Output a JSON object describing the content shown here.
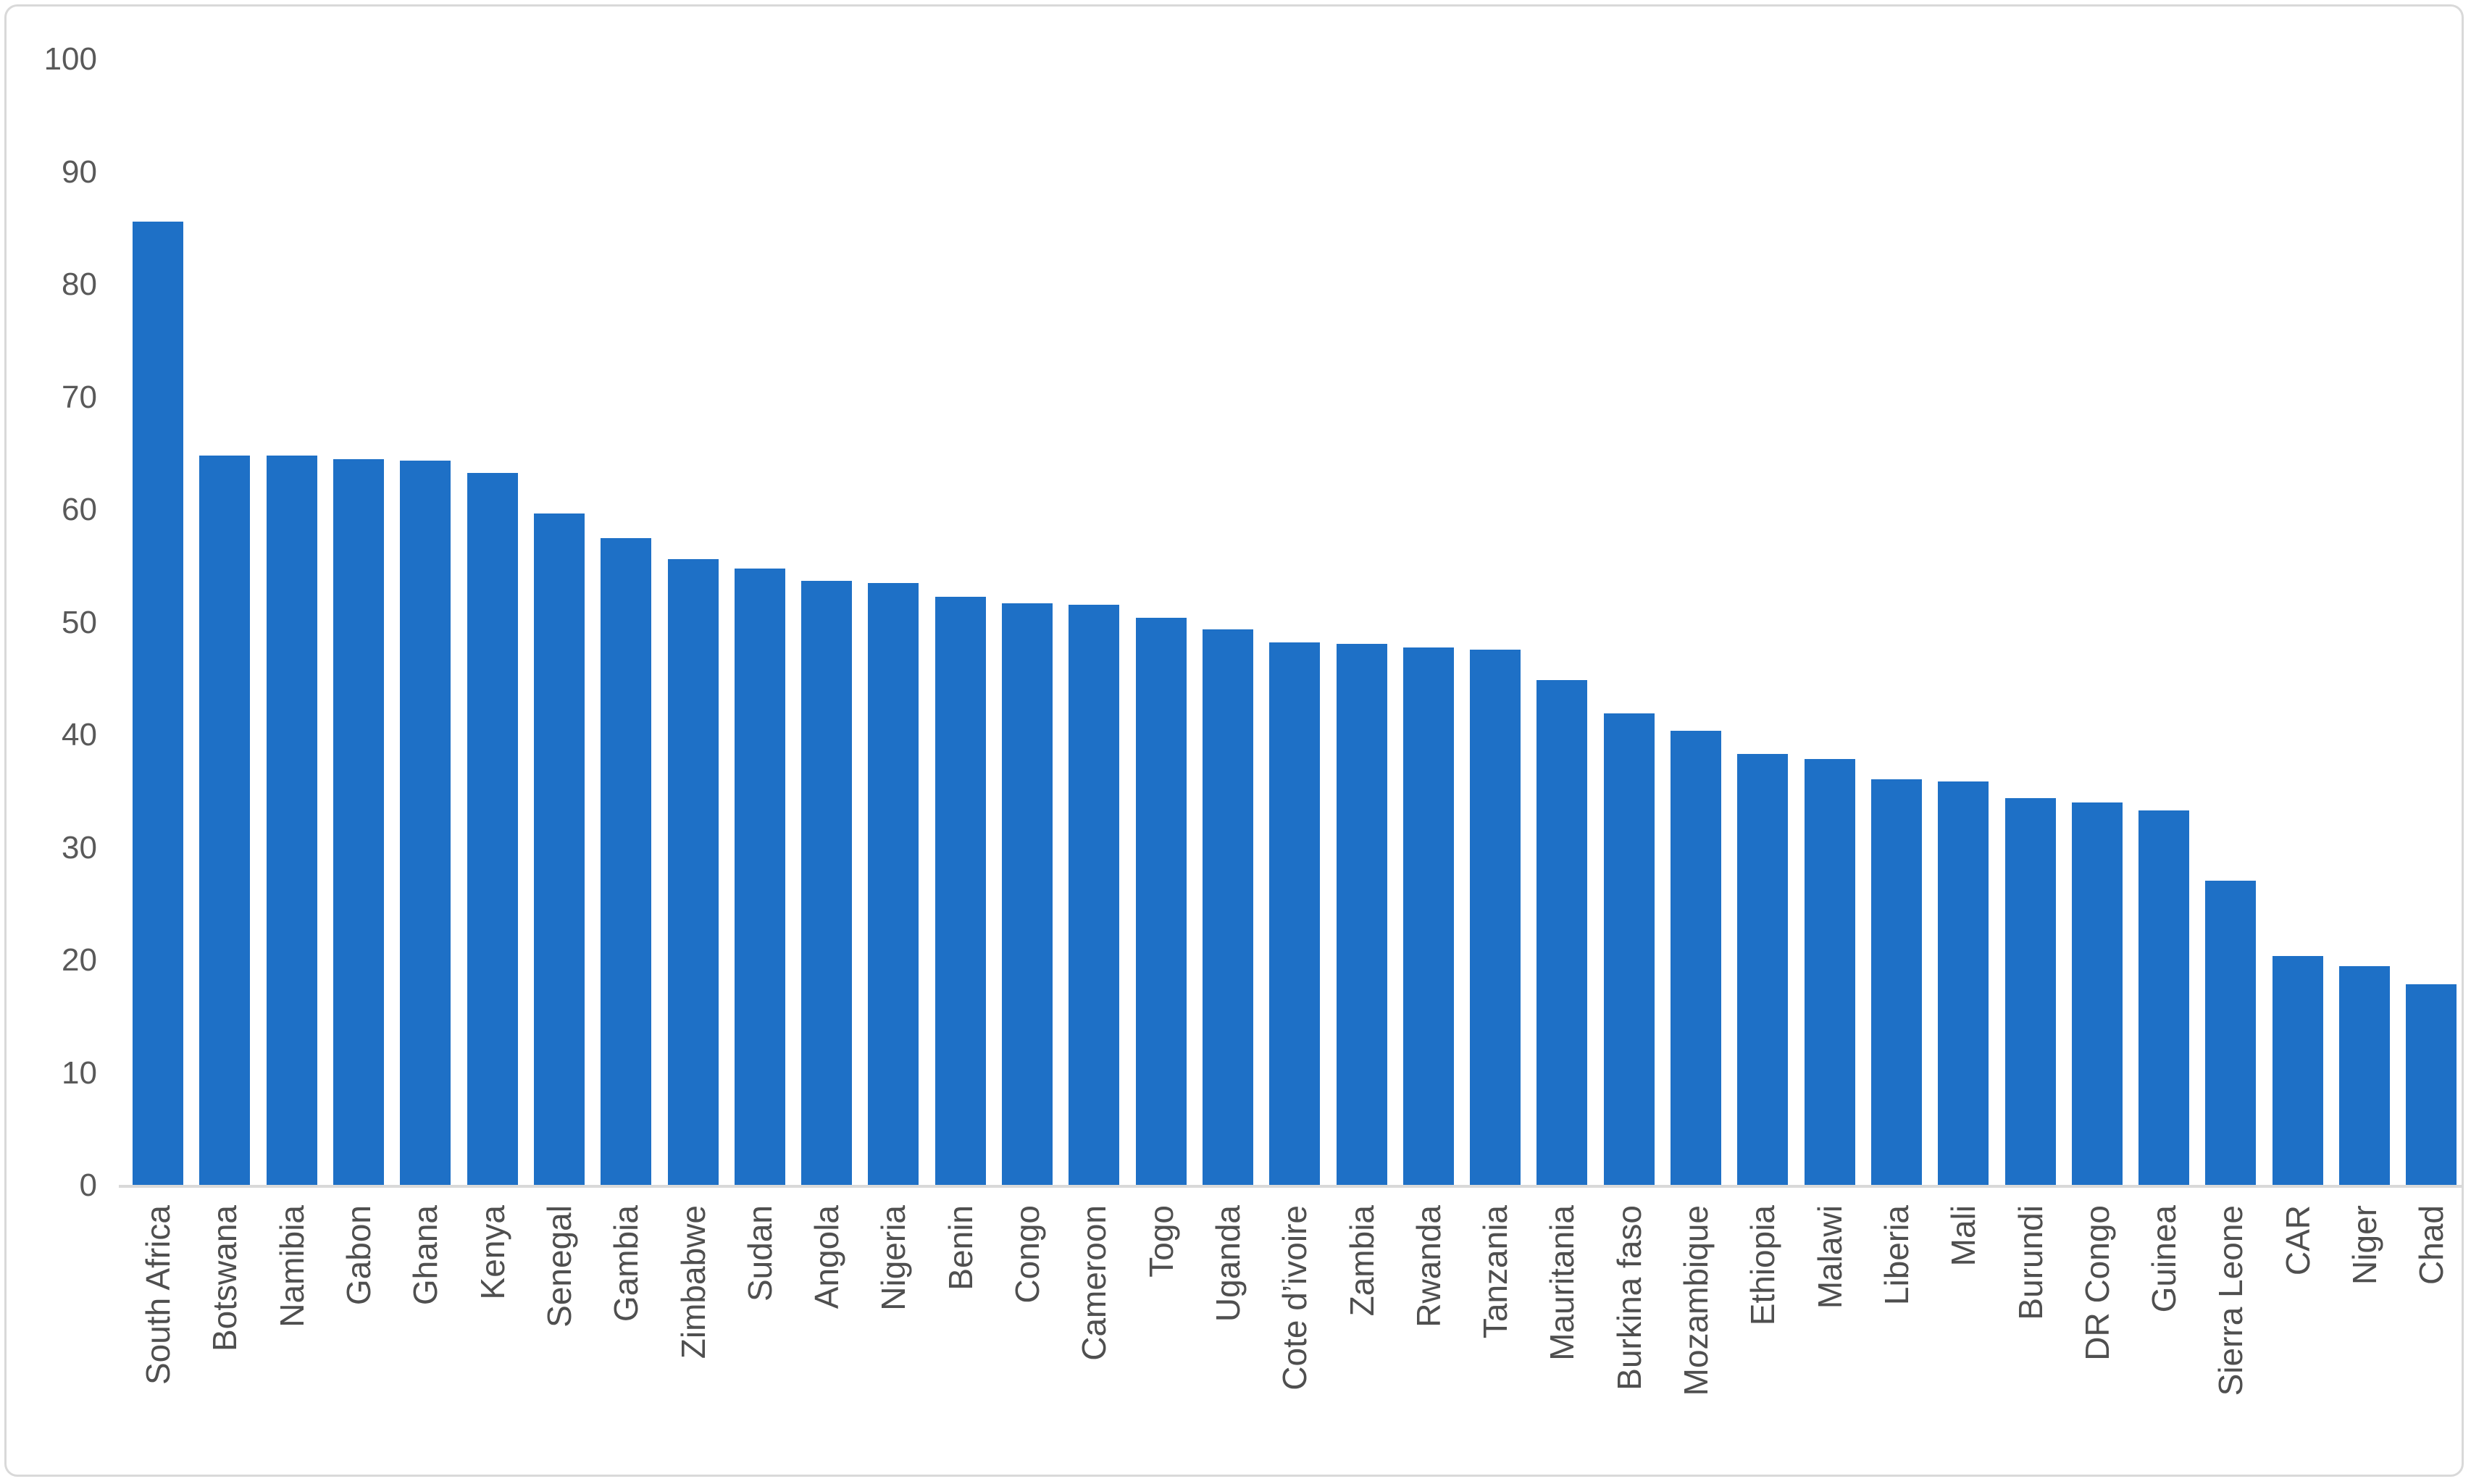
{
  "chart_data": {
    "type": "bar",
    "title": "",
    "xlabel": "",
    "ylabel": "",
    "ylim": [
      0,
      100
    ],
    "ytick_step": 10,
    "yticks": [
      "0",
      "10",
      "20",
      "30",
      "40",
      "50",
      "60",
      "70",
      "80",
      "90",
      "100"
    ],
    "grid": false,
    "legend": "none",
    "bar_color": "#1e70c6",
    "axis_line_color": "#d9d9d9",
    "tick_label_color": "#595959",
    "category_label_color": "#4f4f4f",
    "frame_border_color": "#d9d9d9",
    "background": "#ffffff",
    "categories": [
      "South Africa",
      "Botswana",
      "Namibia",
      "Gabon",
      "Ghana",
      "Kenya",
      "Senegal",
      "Gambia",
      "Zimbabwe",
      "Sudan",
      "Angola",
      "Nigeria",
      "Benin",
      "Congo",
      "Cameroon",
      "Togo",
      "Uganda",
      "Cote d’ivoire",
      "Zambia",
      "Rwanda",
      "Tanzania",
      "Mauritania",
      "Burkina faso",
      "Mozambique",
      "Ethiopia",
      "Malawi",
      "Liberia",
      "Mali",
      "Burundi",
      "DR Congo",
      "Guinea",
      "Sierra Leone",
      "CAR",
      "Niger",
      "Chad"
    ],
    "values": [
      85.6,
      64.8,
      64.8,
      64.5,
      64.4,
      63.3,
      59.7,
      57.5,
      55.6,
      54.8,
      53.7,
      53.5,
      52.3,
      51.7,
      51.6,
      50.4,
      49.4,
      48.2,
      48.1,
      47.8,
      47.6,
      44.9,
      41.9,
      40.4,
      38.3,
      37.9,
      36.1,
      35.9,
      34.4,
      34.0,
      33.3,
      27.1,
      20.4,
      19.5,
      17.9
    ]
  }
}
